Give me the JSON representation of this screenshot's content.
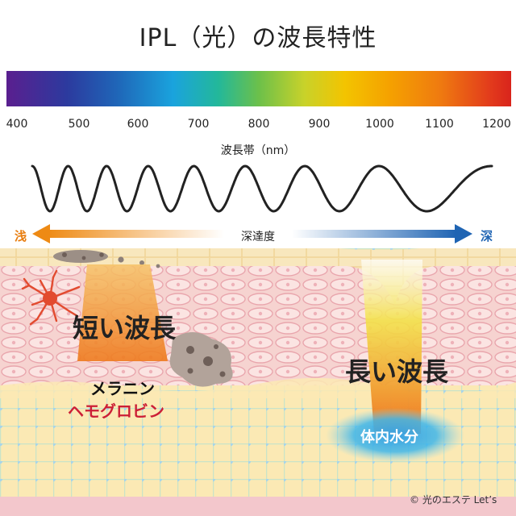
{
  "title": "IPL（光）の波長特性",
  "spectrum": {
    "ticks": [
      "400",
      "500",
      "600",
      "700",
      "800",
      "900",
      "1000",
      "1100",
      "1200"
    ],
    "axis_label": "波長帯（nm）"
  },
  "depth": {
    "title": "深達度",
    "shallow": "浅",
    "deep": "深",
    "shallow_color": "#ee8a14",
    "deep_color": "#1f64b3"
  },
  "labels": {
    "short_wave": "短い波長",
    "long_wave": "長い波長",
    "melanin": "メラニン",
    "hemoglobin": "ヘモグロビン",
    "water": "体内水分",
    "credit": "© 光のエステ Let’s"
  },
  "colors": {
    "hemoglobin_text": "#cc1f36",
    "water_glow": "#2aa8e0",
    "skin_pink": "#f6d3d0",
    "fat_yellow": "#f7e3a6"
  }
}
